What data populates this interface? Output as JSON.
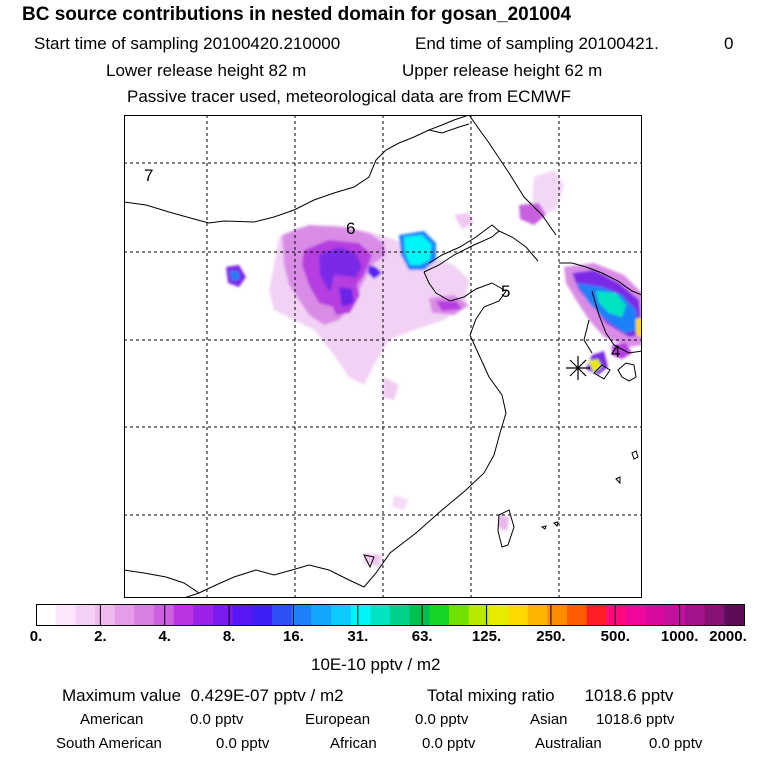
{
  "header": {
    "title": "BC  source contributions in nested domain for gosan_201004",
    "start_label": "Start time of sampling 20100420.210000",
    "end_label": "End time of sampling 20100421.",
    "end_suffix": "0",
    "lower_release": "Lower release height   82 m",
    "upper_release": "Upper release height   62 m",
    "tracer_note": "Passive tracer used, meteorological data are from ECMWF"
  },
  "map": {
    "labels": [
      "7",
      "6",
      "5",
      "4"
    ]
  },
  "colorbar": {
    "colors": [
      "#ffffff",
      "#fbe6fb",
      "#f5d0f5",
      "#efbaef",
      "#e59de9",
      "#d87fe4",
      "#cc5fe2",
      "#bb34e0",
      "#9b22e6",
      "#7a1cf0",
      "#5a17f6",
      "#3f20f4",
      "#2e50f6",
      "#1e80f8",
      "#14a6fa",
      "#0ccbfc",
      "#00f6f6",
      "#00e4c2",
      "#00d08a",
      "#00c050",
      "#18d424",
      "#70e000",
      "#b8ea00",
      "#e6ec00",
      "#ffd800",
      "#ffb400",
      "#ff8c00",
      "#ff5a00",
      "#ff1e28",
      "#ff0a80",
      "#f0089a",
      "#d80aa0",
      "#c0129e",
      "#a2148c",
      "#861276",
      "#5e0c58"
    ],
    "tick_labels": [
      "0.",
      "2.",
      "4.",
      "8.",
      "16.",
      "31.",
      "63.",
      "125.",
      "250.",
      "500.",
      "1000.",
      "2000."
    ],
    "units": "10E-10 pptv / m2"
  },
  "summary": {
    "max_label": "Maximum value",
    "max_value": "0.429E-07 pptv / m2",
    "total_label": "Total mixing ratio",
    "total_value": "1018.6 pptv"
  },
  "regions": [
    {
      "name": "American",
      "value": "0.0 pptv"
    },
    {
      "name": "European",
      "value": "0.0 pptv"
    },
    {
      "name": "Asian",
      "value": "1018.6 pptv"
    },
    {
      "name": "South American",
      "value": "0.0 pptv"
    },
    {
      "name": "African",
      "value": "0.0 pptv"
    },
    {
      "name": "Australian",
      "value": "0.0 pptv"
    }
  ]
}
